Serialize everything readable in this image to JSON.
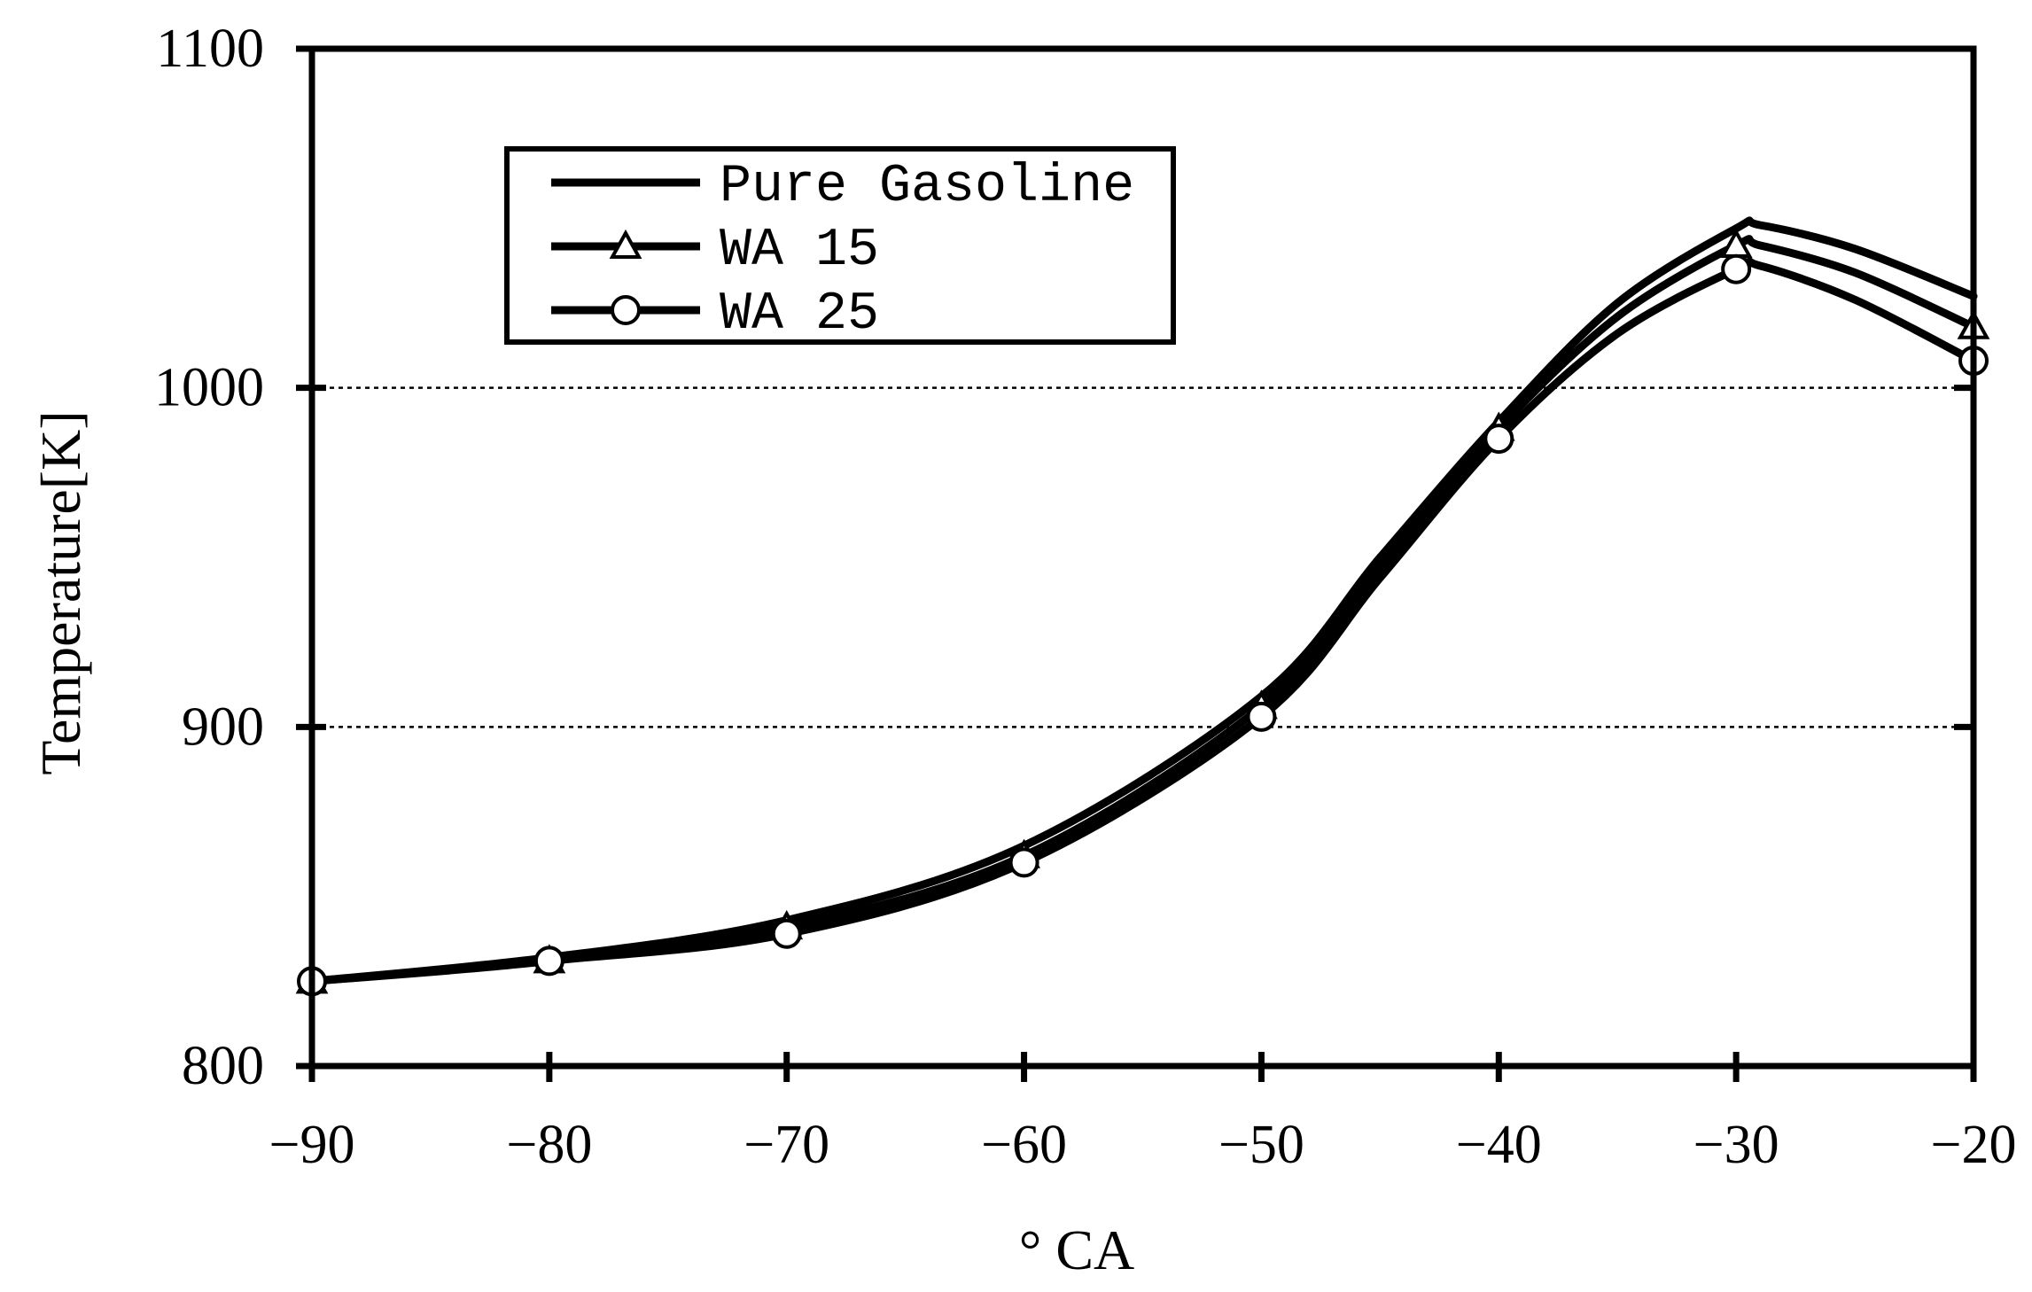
{
  "chart_data": {
    "type": "line",
    "title": "",
    "xlabel": "° CA",
    "ylabel": "Temperature[K]",
    "xlim": [
      -90,
      -20
    ],
    "ylim": [
      800,
      1100
    ],
    "x_ticks": [
      "-90",
      "-80",
      "-70",
      "-60",
      "-50",
      "-40",
      "-30",
      "-20"
    ],
    "y_ticks": [
      "800",
      "900",
      "1000",
      "1100"
    ],
    "grid": "horizontal dotted at 900 and 1000",
    "legend_position": "top-left",
    "series": [
      {
        "name": "Pure Gasoline",
        "marker": "none",
        "x": [
          -90,
          -80,
          -70,
          -60,
          -50,
          -45,
          -40,
          -35,
          -30,
          -29,
          -25,
          -20
        ],
        "y": [
          825,
          832,
          843,
          865,
          909,
          950,
          990,
          1025,
          1047,
          1048,
          1041,
          1027
        ]
      },
      {
        "name": "WA 15",
        "marker": "triangle",
        "x": [
          -90,
          -80,
          -70,
          -60,
          -50,
          -45,
          -40,
          -35,
          -30,
          -29,
          -25,
          -20
        ],
        "y": [
          825,
          831,
          841,
          862,
          906,
          947,
          988,
          1021,
          1042,
          1042,
          1034,
          1018
        ]
      },
      {
        "name": "WA 25",
        "marker": "circle",
        "x": [
          -90,
          -80,
          -70,
          -60,
          -50,
          -45,
          -40,
          -35,
          -30,
          -29,
          -25,
          -20
        ],
        "y": [
          825,
          831,
          839,
          860,
          903,
          944,
          985,
          1016,
          1035,
          1036,
          1026,
          1008
        ]
      }
    ]
  }
}
